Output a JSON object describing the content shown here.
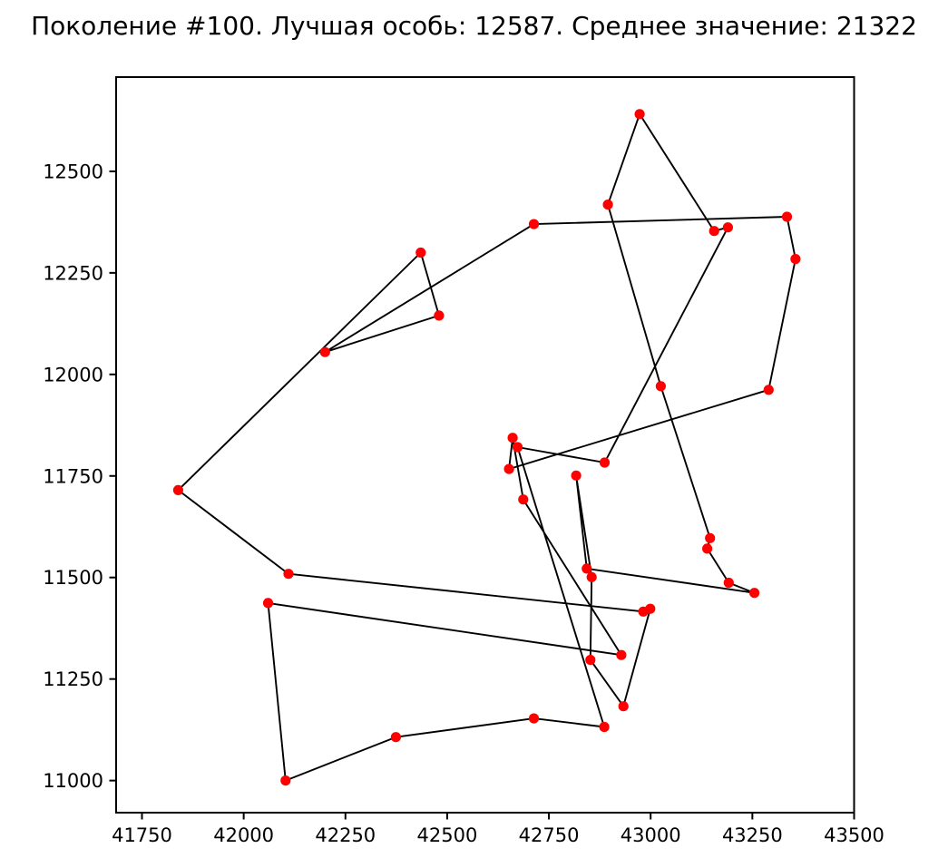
{
  "window": {
    "kind": "matplotlib-figure"
  },
  "header": {
    "title": "Поколение #100. Лучшая особь: 12587. Среднее значение: 21322",
    "generation": 100,
    "best_individual": 12587,
    "average_value": 21322
  },
  "chart_data": {
    "type": "line",
    "subtype": "tsp-tour-scatter",
    "title": "Поколение #100. Лучшая особь: 12587. Среднее значение: 21322",
    "xlabel": "",
    "ylabel": "",
    "grid": false,
    "legend": null,
    "xlim": [
      41686.5,
      43500
    ],
    "ylim": [
      10921,
      12732
    ],
    "x_ticks": [
      41750,
      42000,
      42250,
      42500,
      42750,
      43000,
      43250,
      43500
    ],
    "y_ticks": [
      11000,
      11250,
      11500,
      11750,
      12000,
      12250,
      12500
    ],
    "marker": "circle",
    "marker_color": "#ff0000",
    "line_color": "#000000",
    "closed_tour": true,
    "points": [
      [
        41839,
        11715
      ],
      [
        42110,
        11509
      ],
      [
        42982,
        11416
      ],
      [
        42999,
        11423
      ],
      [
        42933,
        11183
      ],
      [
        42852,
        11297
      ],
      [
        42855,
        11501
      ],
      [
        42817,
        11751
      ],
      [
        42843,
        11522
      ],
      [
        43255,
        11462
      ],
      [
        43192,
        11487
      ],
      [
        43139,
        11571
      ],
      [
        43146,
        11597
      ],
      [
        43025,
        11971
      ],
      [
        42895,
        12418
      ],
      [
        42973,
        12641
      ],
      [
        43156,
        12353
      ],
      [
        43190,
        12362
      ],
      [
        42887,
        11783
      ],
      [
        42673,
        11821
      ],
      [
        42886,
        11132
      ],
      [
        42713,
        11153
      ],
      [
        42374,
        11107
      ],
      [
        42103,
        11000
      ],
      [
        42060,
        11437
      ],
      [
        42928,
        11309
      ],
      [
        42687,
        11692
      ],
      [
        42661,
        11844
      ],
      [
        42652,
        11767
      ],
      [
        43290,
        11962
      ],
      [
        43356,
        12284
      ],
      [
        43335,
        12388
      ],
      [
        42713,
        12370
      ],
      [
        42200,
        12055
      ],
      [
        42480,
        12145
      ],
      [
        42435,
        12300
      ]
    ]
  }
}
